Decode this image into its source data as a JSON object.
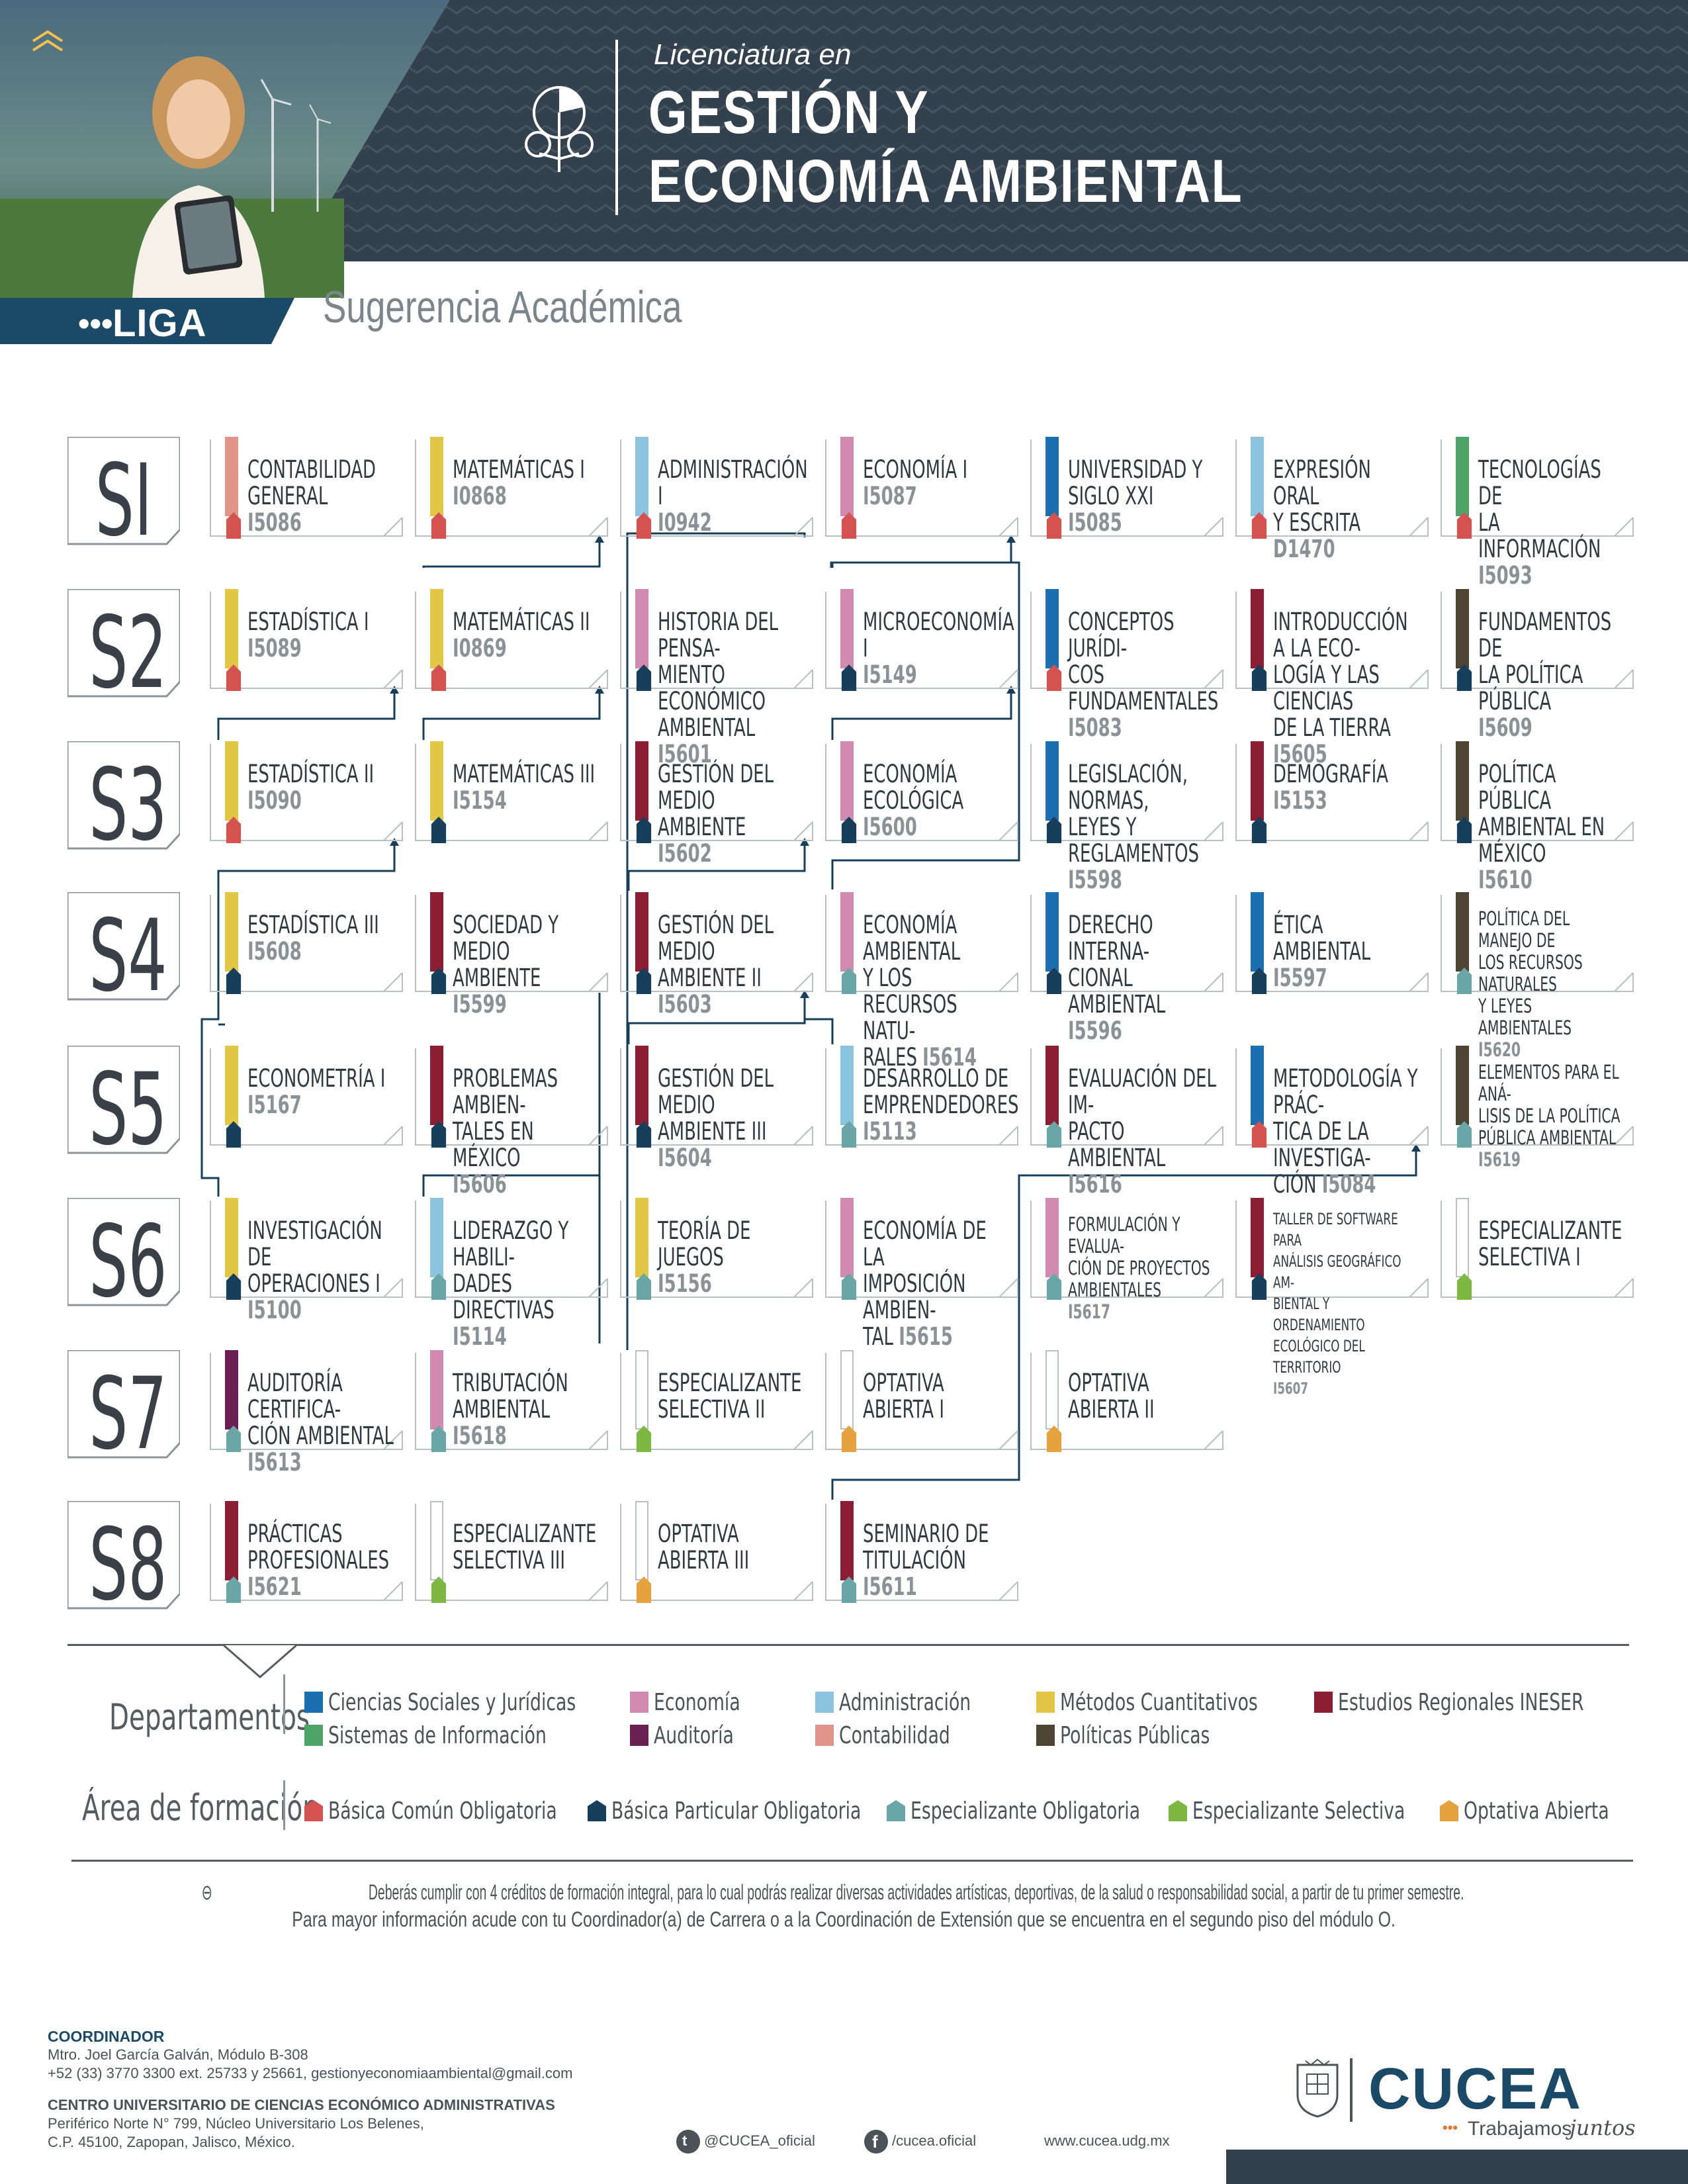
{
  "header": {
    "liga": "LIGA",
    "liga_dots": "•••",
    "pre_title": "Licenciatura en",
    "title_line1": "GESTIÓN Y",
    "title_line2": "ECONOMÍA AMBIENTAL",
    "subtitle": "Sugerencia Académica"
  },
  "colors": {
    "banner": "#33414e",
    "ciencias_sociales": "#1b6fb0",
    "sistemas": "#4da466",
    "economia": "#d38ab1",
    "auditoria": "#6a1f52",
    "administracion": "#8cc4e0",
    "contabilidad": "#e0948a",
    "metodos": "#e2c646",
    "politicas": "#4d4433",
    "ineser": "#8b1e32",
    "basica_comun": "#d4524f",
    "basica_particular": "#173f5b",
    "especializante_oblig": "#6aa6a5",
    "especializante_sel": "#7db843",
    "optativa": "#e5a23e"
  },
  "semesters": [
    "SI",
    "S2",
    "S3",
    "S4",
    "S5",
    "S6",
    "S7",
    "S8"
  ],
  "courses": [
    {
      "name": "CONTABILIDAD\nGENERAL",
      "code": "I5086",
      "dept": "contabilidad",
      "area": "basica_comun"
    },
    {
      "name": "MATEMÁTICAS I",
      "code": "I0868",
      "dept": "metodos",
      "area": "basica_comun"
    },
    {
      "name": "ADMINISTRACIÓN I",
      "code": "I0942",
      "dept": "administracion",
      "area": "basica_comun"
    },
    {
      "name": "ECONOMÍA I",
      "code": "I5087",
      "dept": "economia",
      "area": "basica_comun"
    },
    {
      "name": "UNIVERSIDAD Y\nSIGLO XXI",
      "code": "I5085",
      "dept": "ciencias_sociales",
      "area": "basica_comun"
    },
    {
      "name": "EXPRESIÓN ORAL\nY ESCRITA",
      "code": "D1470",
      "dept": "administracion",
      "area": "basica_comun"
    },
    {
      "name": "TECNOLOGÍAS DE\nLA INFORMACIÓN",
      "code": "I5093",
      "dept": "sistemas",
      "area": "basica_comun"
    },
    {
      "name": "ESTADÍSTICA I",
      "code": "I5089",
      "dept": "metodos",
      "area": "basica_comun"
    },
    {
      "name": "MATEMÁTICAS II",
      "code": "I0869",
      "dept": "metodos",
      "area": "basica_comun"
    },
    {
      "name": "HISTORIA DEL PENSA-\nMIENTO ECONÓMICO\nAMBIENTAL",
      "code": "I5601",
      "dept": "economia",
      "area": "basica_particular"
    },
    {
      "name": "MICROECONOMÍA I",
      "code": "I5149",
      "dept": "economia",
      "area": "basica_particular"
    },
    {
      "name": "CONCEPTOS JURÍDI-\nCOS FUNDAMENTALES",
      "code": "I5083",
      "dept": "ciencias_sociales",
      "area": "basica_comun"
    },
    {
      "name": "INTRODUCCIÓN A LA ECO-\nLOGÍA Y LAS CIENCIAS\nDE LA TIERRA",
      "code": "I5605",
      "dept": "ineser",
      "area": "basica_particular"
    },
    {
      "name": "FUNDAMENTOS DE\nLA POLÍTICA PÚBLICA",
      "code": "I5609",
      "dept": "politicas",
      "area": "basica_particular"
    },
    {
      "name": "ESTADÍSTICA II",
      "code": "I5090",
      "dept": "metodos",
      "area": "basica_comun"
    },
    {
      "name": "MATEMÁTICAS III",
      "code": "I5154",
      "dept": "metodos",
      "area": "basica_particular"
    },
    {
      "name": "GESTIÓN DEL\nMEDIO AMBIENTE",
      "code": "I5602",
      "dept": "ineser",
      "area": "basica_particular"
    },
    {
      "name": "ECONOMÍA\nECOLÓGICA",
      "code": "I5600",
      "dept": "economia",
      "area": "basica_particular"
    },
    {
      "name": "LEGISLACIÓN, NORMAS,\nLEYES Y REGLAMENTOS",
      "code": "I5598",
      "dept": "ciencias_sociales",
      "area": "basica_particular"
    },
    {
      "name": "DEMOGRAFÍA",
      "code": "I5153",
      "dept": "ineser",
      "area": "basica_particular"
    },
    {
      "name": "POLÍTICA PÚBLICA\nAMBIENTAL EN MÉXICO",
      "code": "I5610",
      "dept": "politicas",
      "area": "basica_particular"
    },
    {
      "name": "ESTADÍSTICA III",
      "code": "I5608",
      "dept": "metodos",
      "area": "basica_particular"
    },
    {
      "name": "SOCIEDAD Y\nMEDIO AMBIENTE",
      "code": "I5599",
      "dept": "ineser",
      "area": "basica_particular"
    },
    {
      "name": "GESTIÓN DEL\nMEDIO AMBIENTE II",
      "code": "I5603",
      "dept": "ineser",
      "area": "basica_particular"
    },
    {
      "name": "ECONOMÍA AMBIENTAL\nY LOS RECURSOS NATU-\nRALES",
      "code": "I5614",
      "dept": "economia",
      "area": "especializante_oblig"
    },
    {
      "name": "DERECHO INTERNA-\nCIONAL AMBIENTAL",
      "code": "I5596",
      "dept": "ciencias_sociales",
      "area": "basica_particular"
    },
    {
      "name": "ÉTICA\nAMBIENTAL",
      "code": "I5597",
      "dept": "ciencias_sociales",
      "area": "basica_particular"
    },
    {
      "name": "POLÍTICA DEL MANEJO DE\nLOS RECURSOS NATURALES\nY LEYES AMBIENTALES",
      "code": "I5620",
      "dept": "politicas",
      "area": "especializante_oblig",
      "small": true
    },
    {
      "name": "ECONOMETRÍA I",
      "code": "I5167",
      "dept": "metodos",
      "area": "basica_particular"
    },
    {
      "name": "PROBLEMAS AMBIEN-\nTALES EN MÉXICO",
      "code": "I5606",
      "dept": "ineser",
      "area": "basica_particular"
    },
    {
      "name": "GESTIÓN DEL MEDIO\nAMBIENTE III",
      "code": "I5604",
      "dept": "ineser",
      "area": "basica_particular"
    },
    {
      "name": "DESARROLLO DE\nEMPRENDEDORES",
      "code": "I5113",
      "dept": "administracion",
      "area": "especializante_oblig"
    },
    {
      "name": "EVALUACIÓN DEL IM-\nPACTO AMBIENTAL",
      "code": "I5616",
      "dept": "ineser",
      "area": "especializante_oblig"
    },
    {
      "name": "METODOLOGÍA Y PRÁC-\nTICA DE LA INVESTIGA-\nCIÓN",
      "code": "I5084",
      "dept": "ciencias_sociales",
      "area": "basica_comun"
    },
    {
      "name": "ELEMENTOS PARA EL ANÁ-\nLISIS DE LA POLÍTICA\nPÚBLICA AMBIENTAL",
      "code": "I5619",
      "dept": "politicas",
      "area": "especializante_oblig",
      "small": true
    },
    {
      "name": "INVESTIGACIÓN DE\nOPERACIONES I",
      "code": "I5100",
      "dept": "metodos",
      "area": "basica_particular"
    },
    {
      "name": "LIDERAZGO Y HABILI-\nDADES DIRECTIVAS",
      "code": "I5114",
      "dept": "administracion",
      "area": "especializante_oblig"
    },
    {
      "name": "TEORÍA DE\nJUEGOS",
      "code": "I5156",
      "dept": "metodos",
      "area": "especializante_oblig"
    },
    {
      "name": "ECONOMÍA DE LA\nIMPOSICIÓN AMBIEN-\nTAL",
      "code": "I5615",
      "dept": "economia",
      "area": "especializante_oblig"
    },
    {
      "name": "FORMULACIÓN Y EVALUA-\nCIÓN DE PROYECTOS\nAMBIENTALES",
      "code": "I5617",
      "dept": "economia",
      "area": "especializante_oblig",
      "small": true
    },
    {
      "name": "TALLER DE SOFTWARE PARA\nANÁLISIS GEOGRÁFICO AM-\nBIENTAL Y ORDENAMIENTO\nECOLÓGICO DEL TERRITORIO",
      "code": "I5607",
      "dept": "ineser",
      "area": "basica_particular",
      "xsmall": true
    },
    {
      "name": "ESPECIALIZANTE\nSELECTIVA I",
      "code": "",
      "dept": "none",
      "area": "especializante_sel"
    },
    {
      "name": "AUDITORÍA CERTIFICA-\nCIÓN AMBIENTAL",
      "code": "I5613",
      "dept": "auditoria",
      "area": "especializante_oblig"
    },
    {
      "name": "TRIBUTACIÓN\nAMBIENTAL",
      "code": "I5618",
      "dept": "economia",
      "area": "especializante_oblig"
    },
    {
      "name": "ESPECIALIZANTE\nSELECTIVA II",
      "code": "",
      "dept": "none",
      "area": "especializante_sel"
    },
    {
      "name": "OPTATIVA\nABIERTA I",
      "code": "",
      "dept": "none",
      "area": "optativa"
    },
    {
      "name": "OPTATIVA\nABIERTA II",
      "code": "",
      "dept": "none",
      "area": "optativa"
    },
    {
      "name": "PRÁCTICAS\nPROFESIONALES",
      "code": "I5621",
      "dept": "ineser",
      "area": "especializante_oblig"
    },
    {
      "name": "ESPECIALIZANTE\nSELECTIVA III",
      "code": "",
      "dept": "none",
      "area": "especializante_sel"
    },
    {
      "name": "OPTATIVA\nABIERTA III",
      "code": "",
      "dept": "none",
      "area": "optativa"
    },
    {
      "name": "SEMINARIO DE\nTITULACIÓN",
      "code": "I5611",
      "dept": "ineser",
      "area": "especializante_oblig"
    }
  ],
  "legend": {
    "departamentos_title": "Departamentos",
    "area_title": "Área de formación",
    "departamentos": [
      {
        "label": "Ciencias Sociales y Jurídicas",
        "color": "#1b6fb0"
      },
      {
        "label": "Economía",
        "color": "#d38ab1"
      },
      {
        "label": "Administración",
        "color": "#8cc4e0"
      },
      {
        "label": "Métodos Cuantitativos",
        "color": "#e2c646"
      },
      {
        "label": "Estudios Regionales INESER",
        "color": "#8b1e32"
      },
      {
        "label": "Sistemas de Información",
        "color": "#4da466"
      },
      {
        "label": "Auditoría",
        "color": "#6a1f52"
      },
      {
        "label": "Contabilidad",
        "color": "#e0948a"
      },
      {
        "label": "Políticas Públicas",
        "color": "#4d4433"
      }
    ],
    "areas": [
      {
        "label": "Básica Común Obligatoria",
        "color": "#d4524f"
      },
      {
        "label": "Básica Particular Obligatoria",
        "color": "#173f5b"
      },
      {
        "label": "Especializante Obligatoria",
        "color": "#6aa6a5"
      },
      {
        "label": "Especializante Selectiva",
        "color": "#7db843"
      },
      {
        "label": "Optativa Abierta",
        "color": "#e5a23e"
      }
    ]
  },
  "notes": {
    "line1": "Deberás cumplir con 4 créditos de formación integral, para lo cual podrás realizar diversas actividades artísticas, deportivas, de la salud o responsabilidad social, a partir de tu primer semestre.",
    "line2": "Para mayor información acude con tu Coordinador(a) de Carrera o a la Coordinación de Extensión que se encuentra en el segundo piso del módulo O."
  },
  "footer": {
    "coord_title": "COORDINADOR",
    "coord_name": "Mtro. Joel García Galván, Módulo B-308",
    "coord_contact": "+52 (33) 3770 3300 ext. 25733 y 25661, gestionyeconomiaambiental@gmail.com",
    "center_name": "CENTRO UNIVERSITARIO DE CIENCIAS ECONÓMICO ADMINISTRATIVAS",
    "address1": "Periférico Norte N° 799, Núcleo Universitario Los Belenes,",
    "address2": "C.P. 45100, Zapopan, Jalisco, México.",
    "twitter": "@CUCEA_oficial",
    "facebook": "/cucea.oficial",
    "website": "www.cucea.udg.mx",
    "brand": "CUCEA",
    "tagline_a": "Trabajamos",
    "tagline_b": "juntos",
    "tagline_dots": "•••"
  }
}
